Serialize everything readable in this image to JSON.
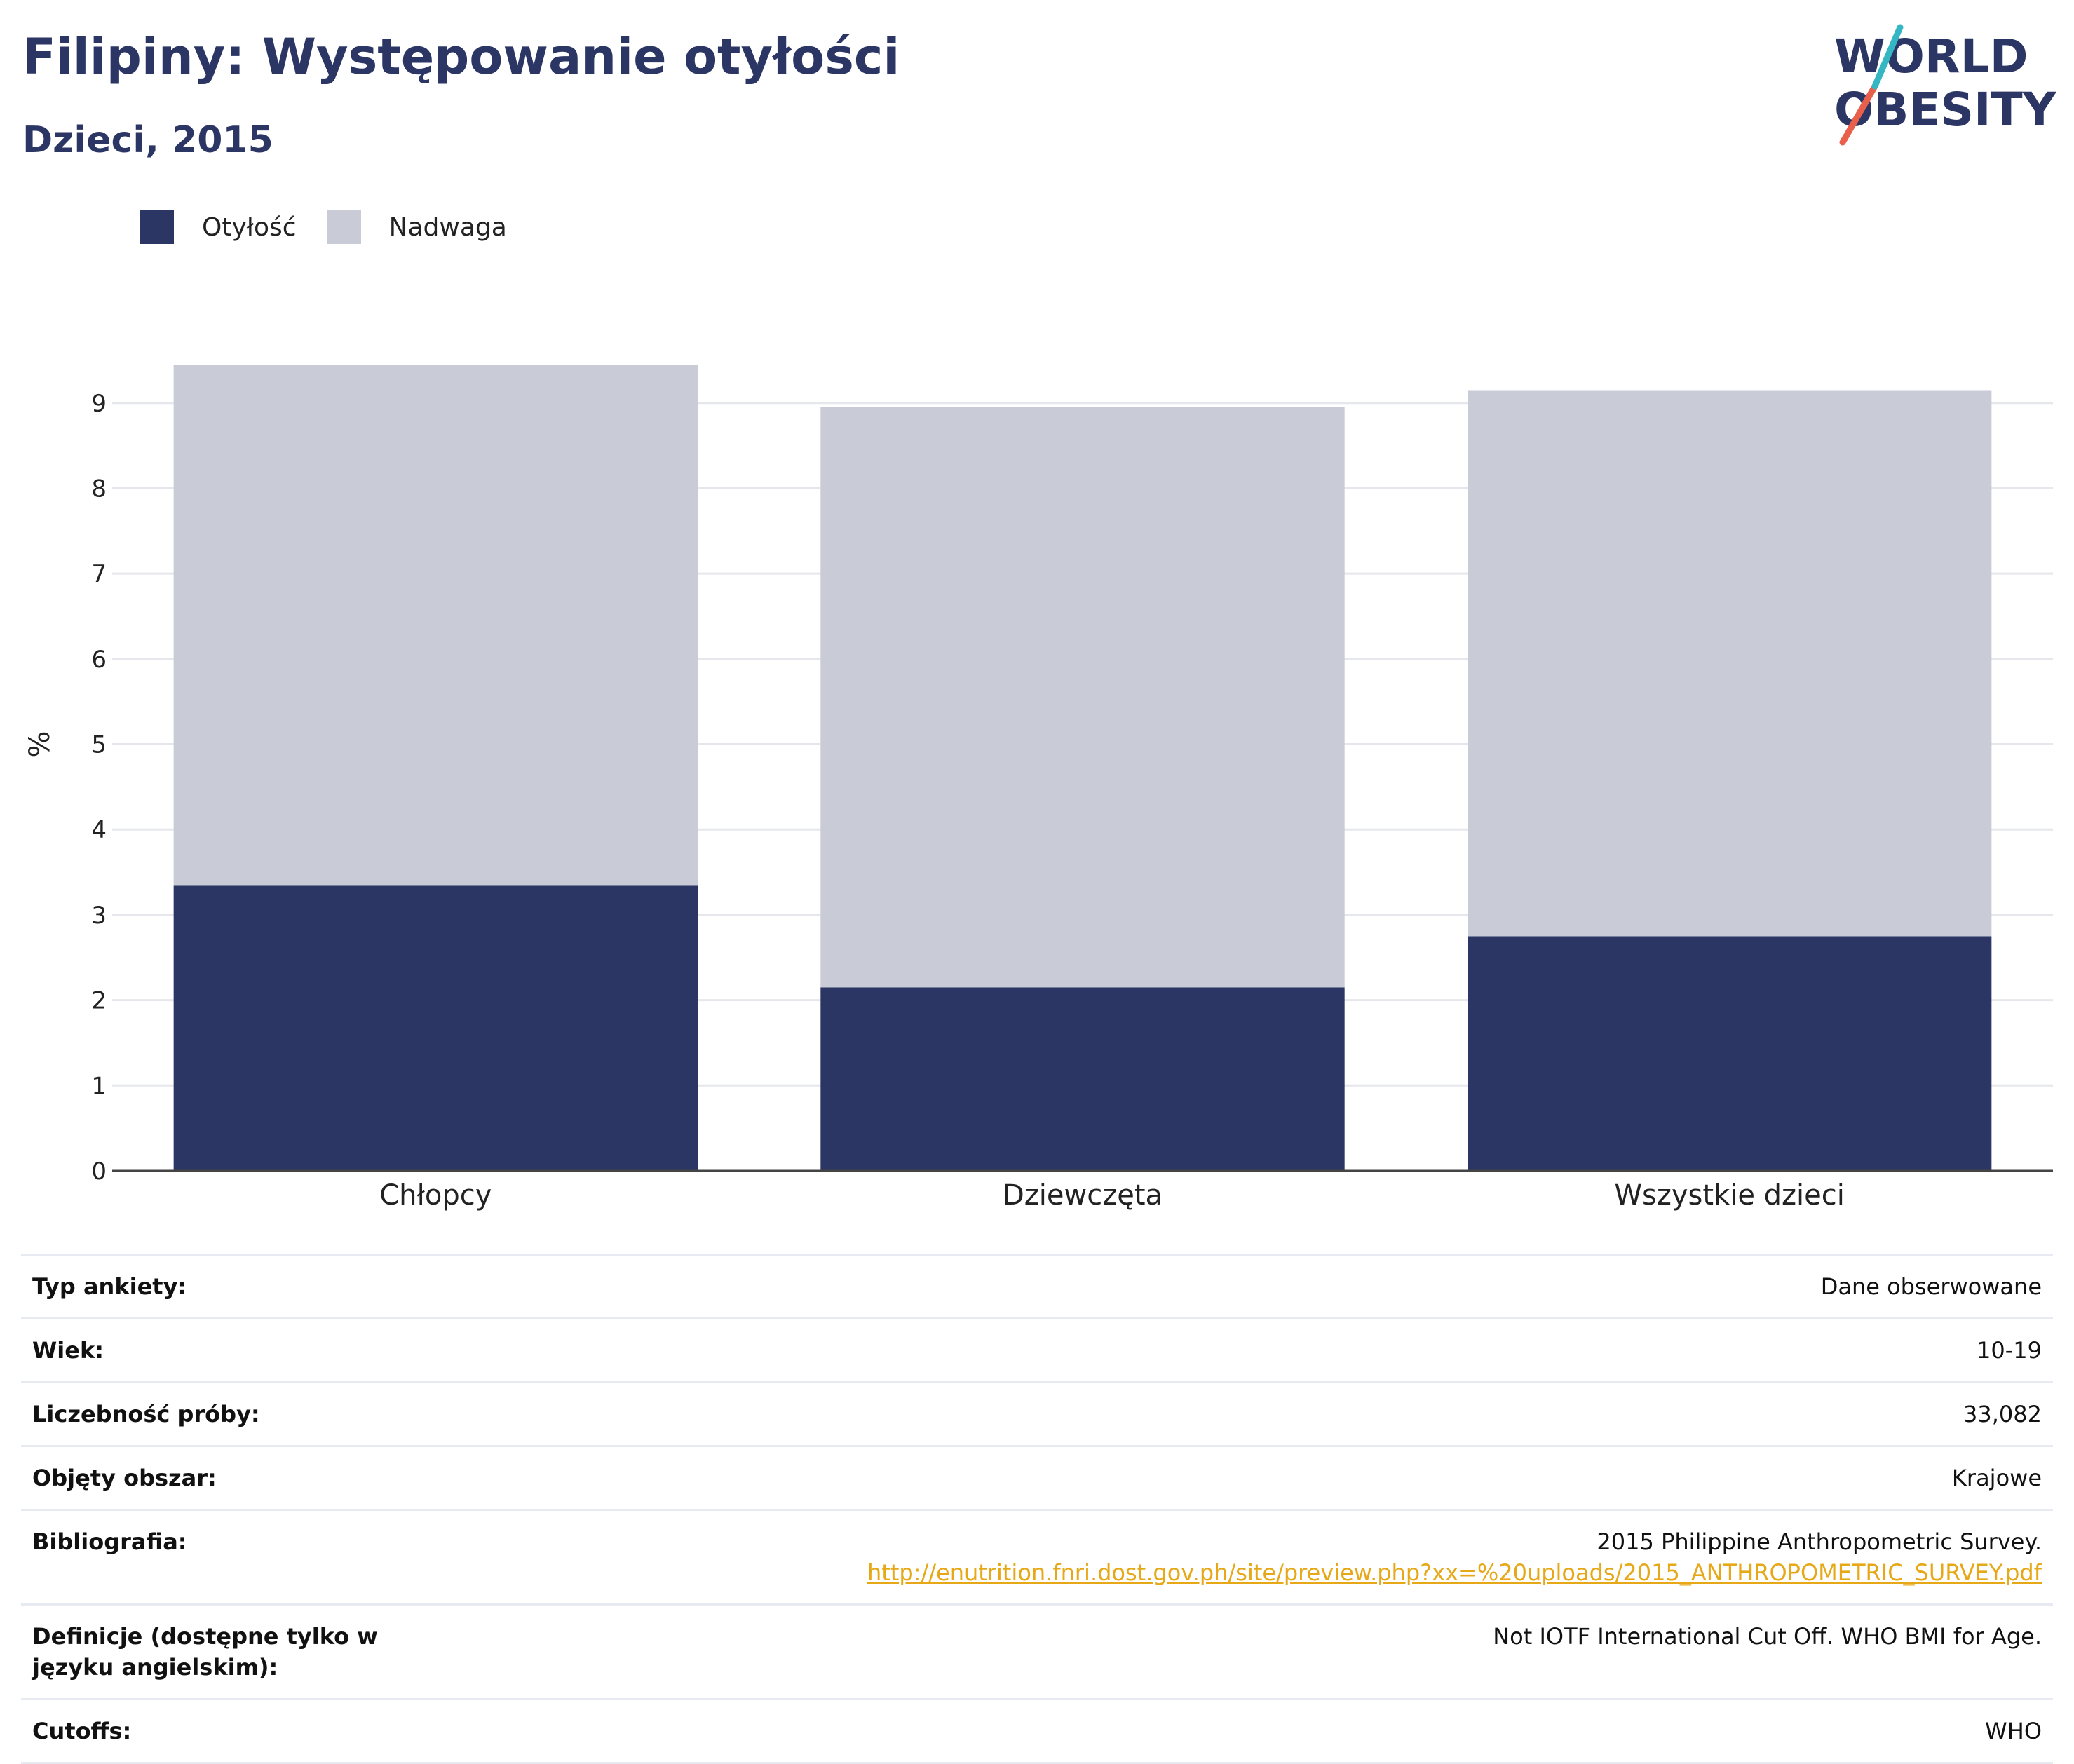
{
  "header": {
    "title": "Filipiny: Występowanie otyłości",
    "subtitle": "Dzieci, 2015"
  },
  "logo": {
    "line1": "WORLD",
    "line2": "OBESITY"
  },
  "colors": {
    "obesity": "#2b3664",
    "overweight": "#c9cbd6",
    "accent_red": "#e8604c",
    "accent_teal": "#35b7c3",
    "link": "#e6a817"
  },
  "chart_data": {
    "type": "bar",
    "stacked": true,
    "categories": [
      "Chłopcy",
      "Dziewczęta",
      "Wszystkie dzieci"
    ],
    "series": [
      {
        "name": "Otyłość",
        "values": [
          3.35,
          2.15,
          2.75
        ]
      },
      {
        "name": "Nadwaga",
        "values": [
          6.1,
          6.8,
          6.4
        ]
      }
    ],
    "title": "Filipiny: Występowanie otyłości",
    "subtitle": "Dzieci, 2015",
    "xlabel": "",
    "ylabel": "%",
    "ylim": [
      0,
      9.45
    ],
    "yticks": [
      0,
      1,
      2,
      3,
      4,
      5,
      6,
      7,
      8,
      9
    ],
    "grid": true,
    "legend_position": "top-left"
  },
  "details": [
    {
      "label": "Typ ankiety:",
      "value": "Dane obserwowane"
    },
    {
      "label": "Wiek:",
      "value": "10-19"
    },
    {
      "label": "Liczebność próby:",
      "value": "33,082"
    },
    {
      "label": "Objęty obszar:",
      "value": "Krajowe"
    },
    {
      "label": "Bibliografia:",
      "value": "2015 Philippine Anthropometric Survey.",
      "link": "http://enutrition.fnri.dost.gov.ph/site/preview.php?xx=%20uploads/2015_ANTHROPOMETRIC_SURVEY.pdf"
    },
    {
      "label": "Definicje (dostępne tylko w języku angielskim):",
      "value": "Not IOTF International Cut Off. WHO BMI for Age."
    },
    {
      "label": "Cutoffs:",
      "value": "WHO"
    }
  ]
}
